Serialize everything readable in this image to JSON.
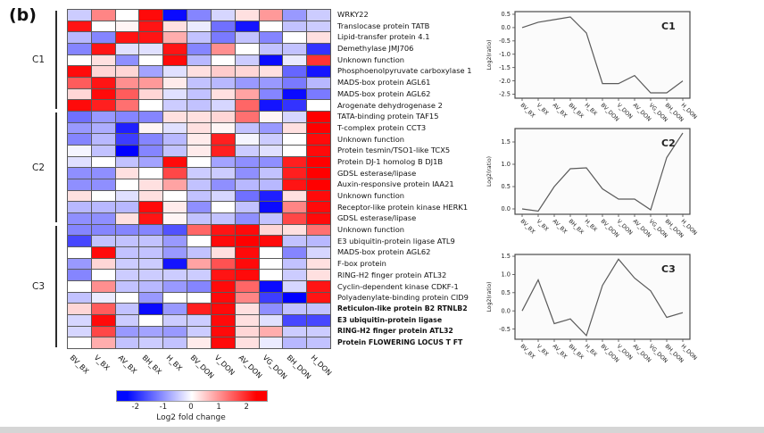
{
  "panel_label": "(b)",
  "colorbar": {
    "label": "Log2 fold change"
  },
  "chart_data": [
    {
      "type": "heatmap",
      "columns": [
        "BV_BX",
        "V_BX",
        "AV_BX",
        "BH_BX",
        "H_BX",
        "BV_DON",
        "V_DON",
        "AV_DON",
        "VG_DON",
        "BH_DON",
        "H_DON"
      ],
      "rows": [
        "WRKY22",
        "Translocase protein TATB",
        "Lipid-transfer protein 4.1",
        "Demethylase JMJ706",
        "Unknown function",
        "Phosphoenolpyruvate carboxylase 1",
        "MADS-box protein AGL61",
        "MADS-box protein AGL62",
        "Arogenate dehydrogenase 2",
        "TATA-binding protein TAF15",
        "T-complex protein CCT3",
        "Unknown function",
        "Protein tesmin/TSO1-like TCX5",
        "Protein DJ-1 homolog B DJ1B",
        "GDSL esterase/lipase",
        "Auxin-responsive protein IAA21",
        "Unknown function",
        "Receptor-like protein kinase HERK1",
        "GDSL esterase/lipase",
        "Unknown function",
        "E3 ubiquitin-protein ligase ATL9",
        "MADS-box protein AGL62",
        "F-box protein",
        "RING-H2 finger protein ATL32",
        "Cyclin-dependent kinase CDKF-1",
        "Polyadenylate-binding protein CID9",
        "Reticulon-like protein B2 RTNLB2",
        "E3 ubiquitin-protein ligase",
        "RING-H2 finger protein ATL32",
        "Protein FLOWERING LOCUS T FT"
      ],
      "bold_row_indices": [
        26,
        27,
        28,
        29
      ],
      "clusters": [
        {
          "label": "C1",
          "row_start": 0,
          "row_end": 8
        },
        {
          "label": "C2",
          "row_start": 9,
          "row_end": 18
        },
        {
          "label": "C3",
          "row_start": 19,
          "row_end": 29
        }
      ],
      "value_label": "Log2 fold change",
      "value_range": [
        -2.5,
        2.5
      ],
      "values": [
        [
          -0.5,
          1.2,
          0.0,
          2.4,
          -2.4,
          -1.2,
          -0.4,
          0.3,
          1.0,
          -1.0,
          -0.5
        ],
        [
          2.3,
          0.0,
          0.1,
          2.3,
          0.3,
          -0.2,
          -1.4,
          -2.3,
          0.0,
          -0.6,
          -0.5
        ],
        [
          -0.7,
          -1.2,
          2.3,
          2.3,
          0.8,
          -0.6,
          -1.3,
          -0.6,
          -1.2,
          0.0,
          0.3
        ],
        [
          -1.2,
          2.3,
          -0.3,
          -0.3,
          2.3,
          -1.2,
          1.1,
          0.0,
          -0.6,
          -0.6,
          -2.0
        ],
        [
          0.0,
          0.3,
          -1.1,
          0.0,
          2.4,
          -0.7,
          0.0,
          -0.5,
          -2.4,
          -0.2,
          2.0
        ],
        [
          2.4,
          0.4,
          0.4,
          -0.9,
          -0.3,
          0.3,
          0.5,
          0.4,
          0.3,
          -1.5,
          -2.3
        ],
        [
          1.6,
          2.3,
          1.1,
          1.0,
          0.2,
          -0.6,
          -0.7,
          -1.0,
          -1.0,
          -1.3,
          -0.7
        ],
        [
          0.4,
          2.4,
          1.6,
          0.4,
          -0.3,
          -0.6,
          0.3,
          0.9,
          -1.2,
          -2.4,
          -1.3
        ],
        [
          2.4,
          2.2,
          1.4,
          0.0,
          -0.5,
          -0.6,
          -0.4,
          1.5,
          -2.3,
          -2.0,
          0.0
        ],
        [
          -1.4,
          -1.0,
          -1.2,
          -1.2,
          0.3,
          0.3,
          0.4,
          1.4,
          0.1,
          -0.4,
          2.5
        ],
        [
          -1.0,
          -0.8,
          -2.2,
          0.1,
          -0.3,
          0.3,
          0.1,
          -0.6,
          -1.0,
          0.3,
          2.5
        ],
        [
          -1.2,
          -0.7,
          -1.9,
          -1.2,
          -0.7,
          0.2,
          2.2,
          -0.1,
          -0.5,
          0.0,
          2.4
        ],
        [
          -0.1,
          -0.6,
          -2.5,
          -1.2,
          -0.6,
          0.2,
          2.2,
          -0.5,
          -0.3,
          0.0,
          2.4
        ],
        [
          -0.3,
          0.0,
          -0.6,
          -0.9,
          2.4,
          0.0,
          -0.9,
          -1.1,
          -1.1,
          2.2,
          2.5
        ],
        [
          -1.1,
          -1.1,
          0.3,
          0.0,
          1.8,
          -0.5,
          -0.5,
          -1.1,
          -0.6,
          2.2,
          2.5
        ],
        [
          -1.1,
          -1.1,
          0.0,
          0.3,
          0.9,
          -0.6,
          -1.1,
          -0.7,
          -0.7,
          2.3,
          2.5
        ],
        [
          0.3,
          0.0,
          -0.3,
          0.3,
          0.0,
          -0.6,
          -0.4,
          -1.4,
          -2.2,
          0.3,
          2.4
        ],
        [
          -0.7,
          -0.7,
          -0.7,
          2.4,
          0.2,
          -1.1,
          0.0,
          -0.6,
          -2.4,
          1.2,
          2.4
        ],
        [
          -1.1,
          -1.1,
          0.3,
          2.3,
          0.1,
          -0.6,
          -0.6,
          -1.1,
          -0.6,
          1.8,
          2.4
        ],
        [
          -1.2,
          -1.2,
          -1.2,
          -1.2,
          -1.7,
          1.5,
          2.3,
          2.4,
          0.4,
          0.3,
          1.4
        ],
        [
          -1.8,
          -0.6,
          -0.6,
          -0.6,
          -1.0,
          0.0,
          2.4,
          2.5,
          2.4,
          -0.6,
          -0.7
        ],
        [
          0.0,
          2.4,
          -0.6,
          -0.6,
          -1.0,
          -0.6,
          0.3,
          2.4,
          0.0,
          -1.2,
          -0.4
        ],
        [
          -1.0,
          0.4,
          -0.5,
          -0.5,
          -2.3,
          0.9,
          1.7,
          2.4,
          0.0,
          -0.6,
          0.3
        ],
        [
          -1.2,
          0.0,
          -0.5,
          -0.5,
          -0.5,
          -0.5,
          2.3,
          2.4,
          0.0,
          -0.5,
          0.3
        ],
        [
          0.0,
          1.1,
          -0.6,
          -0.7,
          -1.0,
          -1.2,
          2.4,
          1.5,
          -2.4,
          -0.4,
          2.3
        ],
        [
          -0.6,
          -0.2,
          0.0,
          -1.0,
          0.0,
          0.0,
          2.4,
          1.2,
          -1.9,
          -2.5,
          2.3
        ],
        [
          0.4,
          1.6,
          -0.6,
          -2.4,
          -1.0,
          2.2,
          2.4,
          0.3,
          -1.1,
          -0.6,
          -0.6
        ],
        [
          -0.4,
          2.4,
          -0.5,
          0.0,
          -0.5,
          -0.5,
          2.4,
          0.3,
          -0.3,
          -1.8,
          -1.8
        ],
        [
          -0.4,
          1.8,
          -1.0,
          -0.9,
          -1.0,
          -0.5,
          2.4,
          0.4,
          0.8,
          -0.5,
          -0.5
        ],
        [
          0.0,
          0.8,
          -0.6,
          -0.5,
          -0.6,
          0.2,
          2.4,
          0.3,
          -0.2,
          -0.7,
          -0.6
        ]
      ],
      "colorbar": {
        "label": "Log2 fold change",
        "ticks": [
          -2,
          -1,
          0,
          1,
          2
        ],
        "min": -2.7,
        "max": 2.7,
        "negative_color": "#0000ff",
        "positive_color": "#ff0000"
      }
    },
    {
      "type": "line",
      "title": "C1",
      "ylabel": "Log2(ratio)",
      "categories": [
        "BV_BX",
        "V_BX",
        "AV_BX",
        "BH_BX",
        "H_BX",
        "BV_DON",
        "V_DON",
        "AV_DON",
        "VG_DON",
        "BH_DON",
        "H_DON"
      ],
      "values": [
        0.0,
        0.2,
        0.3,
        0.4,
        -0.2,
        -2.1,
        -2.1,
        -1.8,
        -2.45,
        -2.45,
        -2.0
      ],
      "yticks": [
        0.5,
        0.0,
        -0.5,
        -1.0,
        -1.5,
        -2.0,
        -2.5
      ],
      "ylim": [
        -2.65,
        0.6
      ],
      "grid": false,
      "legend": "none"
    },
    {
      "type": "line",
      "title": "C2",
      "ylabel": "Log2(ratio)",
      "categories": [
        "BV_BX",
        "V_BX",
        "AV_BX",
        "BH_BX",
        "H_BX",
        "BV_DON",
        "V_DON",
        "AV_DON",
        "VG_DON",
        "BH_DON",
        "H_DON"
      ],
      "values": [
        0.0,
        -0.05,
        0.5,
        0.9,
        0.92,
        0.45,
        0.22,
        0.22,
        -0.02,
        1.15,
        1.7
      ],
      "yticks": [
        1.5,
        1.0,
        0.5,
        0.0
      ],
      "ylim": [
        -0.12,
        1.8
      ],
      "grid": false,
      "legend": "none"
    },
    {
      "type": "line",
      "title": "C3",
      "ylabel": "Log2(ratio)",
      "categories": [
        "BV_BX",
        "V_BX",
        "AV_BX",
        "BH_BX",
        "H_BX",
        "BV_DON",
        "V_DON",
        "AV_DON",
        "VG_DON",
        "BH_DON",
        "H_DON"
      ],
      "values": [
        0.0,
        0.85,
        -0.35,
        -0.22,
        -0.68,
        0.7,
        1.42,
        0.9,
        0.55,
        -0.18,
        -0.05
      ],
      "yticks": [
        1.5,
        1.0,
        0.5,
        0.0,
        -0.5
      ],
      "ylim": [
        -0.78,
        1.55
      ],
      "grid": false,
      "legend": "none"
    }
  ]
}
